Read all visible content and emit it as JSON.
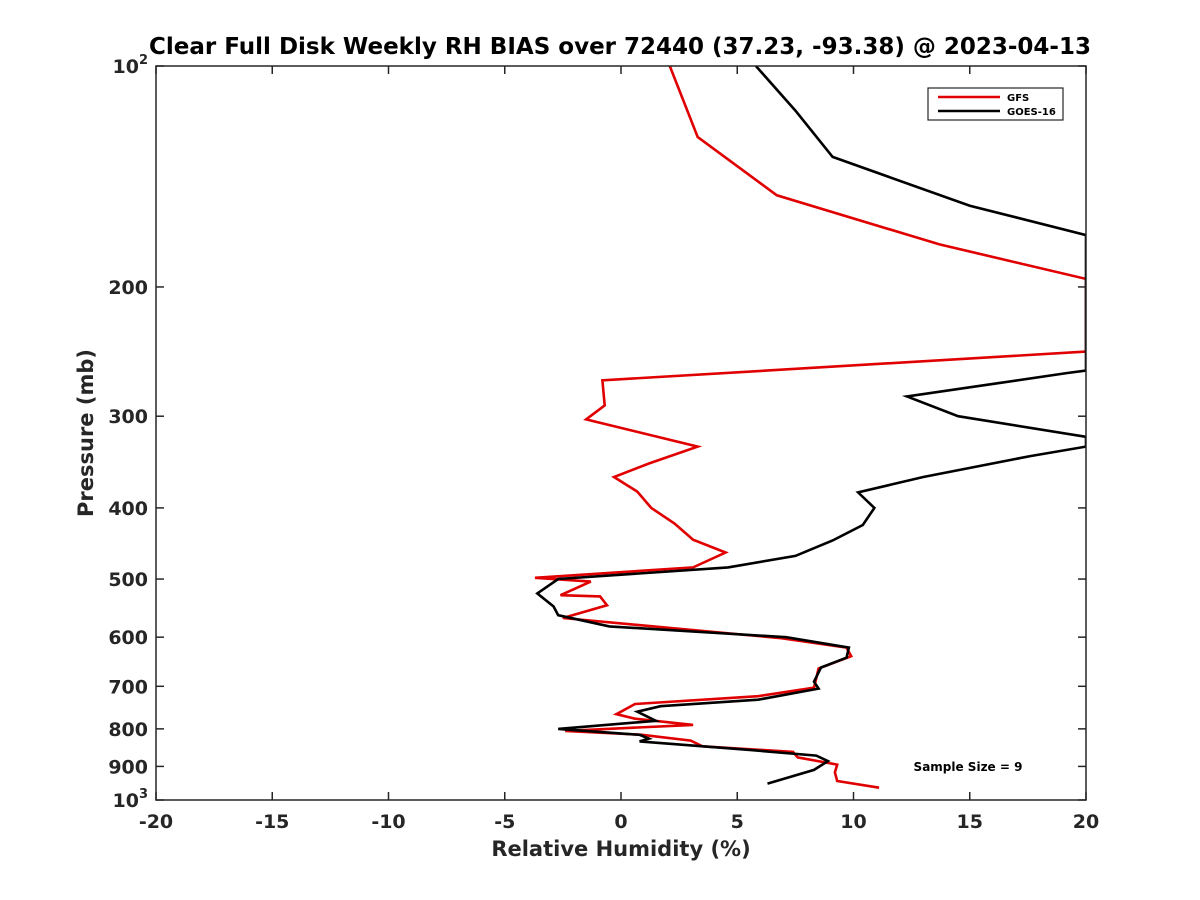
{
  "chart_data": {
    "type": "line",
    "title": "Clear Full Disk Weekly RH BIAS over 72440 (37.23, -93.38) @ 2023-04-13",
    "xlabel": "Relative Humidity (%)",
    "ylabel": "Pressure (mb)",
    "xlim": [
      -20,
      20
    ],
    "ylim": [
      100,
      1000
    ],
    "yscale": "log",
    "y_reversed": true,
    "grid": false,
    "legend_position": "top-right",
    "x_ticks": [
      -20,
      -15,
      -10,
      -5,
      0,
      5,
      10,
      15,
      20
    ],
    "x_tick_labels": [
      "-20",
      "-15",
      "-10",
      "-5",
      "0",
      "5",
      "10",
      "15",
      "20"
    ],
    "y_ticks": [
      {
        "value": 100,
        "base": "10",
        "exp": "2"
      },
      {
        "value": 200,
        "base": "200",
        "exp": ""
      },
      {
        "value": 300,
        "base": "300",
        "exp": ""
      },
      {
        "value": 400,
        "base": "400",
        "exp": ""
      },
      {
        "value": 500,
        "base": "500",
        "exp": ""
      },
      {
        "value": 600,
        "base": "600",
        "exp": ""
      },
      {
        "value": 700,
        "base": "700",
        "exp": ""
      },
      {
        "value": 800,
        "base": "800",
        "exp": ""
      },
      {
        "value": 900,
        "base": "900",
        "exp": ""
      },
      {
        "value": 1000,
        "base": "10",
        "exp": "3"
      }
    ],
    "annotation": "Sample Size = 9",
    "series": [
      {
        "name": "GFS",
        "color": "#e00000",
        "points": [
          [
            2.1,
            100
          ],
          [
            3.3,
            125
          ],
          [
            6.7,
            150
          ],
          [
            13.7,
            175
          ],
          [
            20.0,
            195
          ],
          [
            20.0,
            245
          ],
          [
            -0.8,
            268
          ],
          [
            -0.7,
            290
          ],
          [
            -1.5,
            303
          ],
          [
            3.3,
            330
          ],
          [
            1.2,
            348
          ],
          [
            -0.3,
            363
          ],
          [
            0.7,
            380
          ],
          [
            1.3,
            400
          ],
          [
            2.3,
            420
          ],
          [
            3.1,
            442
          ],
          [
            4.5,
            460
          ],
          [
            3.1,
            482
          ],
          [
            -3.7,
            498
          ],
          [
            -1.3,
            504
          ],
          [
            -2.6,
            526
          ],
          [
            -0.9,
            528
          ],
          [
            -0.6,
            543
          ],
          [
            -2.5,
            565
          ],
          [
            6.9,
            602
          ],
          [
            9.7,
            620
          ],
          [
            9.9,
            637
          ],
          [
            8.5,
            662
          ],
          [
            8.3,
            703
          ],
          [
            5.9,
            722
          ],
          [
            0.6,
            740
          ],
          [
            -0.2,
            764
          ],
          [
            0.6,
            775
          ],
          [
            3.1,
            790
          ],
          [
            -2.4,
            805
          ],
          [
            0.9,
            815
          ],
          [
            3.0,
            830
          ],
          [
            3.5,
            845
          ],
          [
            7.4,
            860
          ],
          [
            7.6,
            875
          ],
          [
            9.3,
            895
          ],
          [
            9.2,
            917
          ],
          [
            9.3,
            942
          ],
          [
            11.1,
            962
          ]
        ]
      },
      {
        "name": "GOES-16",
        "color": "#000000",
        "points": [
          [
            5.8,
            100
          ],
          [
            7.5,
            115
          ],
          [
            9.1,
            133
          ],
          [
            15.0,
            155
          ],
          [
            20.0,
            170
          ],
          [
            20.0,
            260
          ],
          [
            19.2,
            262
          ],
          [
            12.3,
            282
          ],
          [
            14.5,
            300
          ],
          [
            20.0,
            320
          ],
          [
            20.0,
            330
          ],
          [
            17.6,
            340
          ],
          [
            13.0,
            363
          ],
          [
            10.2,
            381
          ],
          [
            10.9,
            400
          ],
          [
            10.4,
            422
          ],
          [
            9.1,
            443
          ],
          [
            7.5,
            465
          ],
          [
            4.6,
            482
          ],
          [
            -2.7,
            500
          ],
          [
            -3.6,
            523
          ],
          [
            -2.9,
            545
          ],
          [
            -2.7,
            560
          ],
          [
            -0.5,
            580
          ],
          [
            7.1,
            600
          ],
          [
            9.8,
            620
          ],
          [
            9.7,
            640
          ],
          [
            8.6,
            660
          ],
          [
            8.3,
            690
          ],
          [
            8.5,
            705
          ],
          [
            5.9,
            730
          ],
          [
            1.7,
            745
          ],
          [
            0.7,
            758
          ],
          [
            1.5,
            780
          ],
          [
            -2.7,
            800
          ],
          [
            0.8,
            815
          ],
          [
            1.2,
            825
          ],
          [
            0.8,
            832
          ],
          [
            5.6,
            855
          ],
          [
            8.4,
            870
          ],
          [
            8.9,
            885
          ],
          [
            8.3,
            910
          ],
          [
            6.3,
            950
          ]
        ]
      }
    ]
  }
}
